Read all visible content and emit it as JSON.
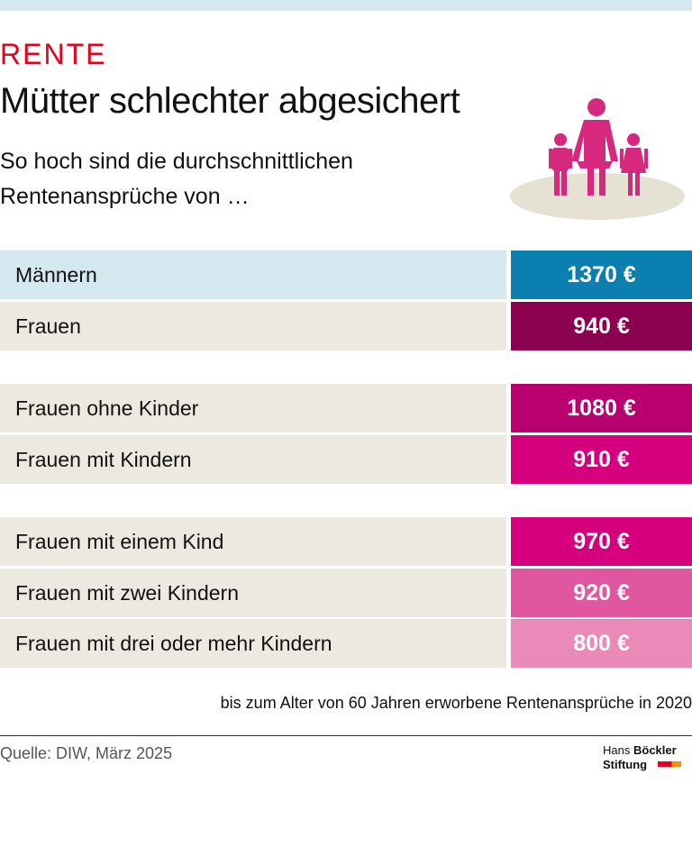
{
  "header": {
    "kicker": "RENTE",
    "title": "Mütter schlechter abgesichert",
    "subtitle": "So hoch sind die durchschnittlichen Rentenansprüche von …"
  },
  "table": {
    "groups": [
      [
        {
          "label": "Männern",
          "value": "1370 €"
        },
        {
          "label": "Frauen",
          "value": "940 €"
        }
      ],
      [
        {
          "label": "Frauen ohne Kinder",
          "value": "1080 €"
        },
        {
          "label": "Frauen mit Kindern",
          "value": "910 €"
        }
      ],
      [
        {
          "label": "Frauen mit einem Kind",
          "value": "970 €"
        },
        {
          "label": "Frauen mit zwei Kindern",
          "value": "920 €"
        },
        {
          "label": "Frauen mit drei oder mehr Kindern",
          "value": "800 €"
        }
      ]
    ]
  },
  "footnote": "bis zum Alter von 60 Jahren erworbene Rentenansprüche in 2020",
  "source": "Quelle: DIW, März 2025",
  "logo": {
    "name1": "Hans",
    "name2": "Böckler",
    "name3": "Stiftung"
  }
}
